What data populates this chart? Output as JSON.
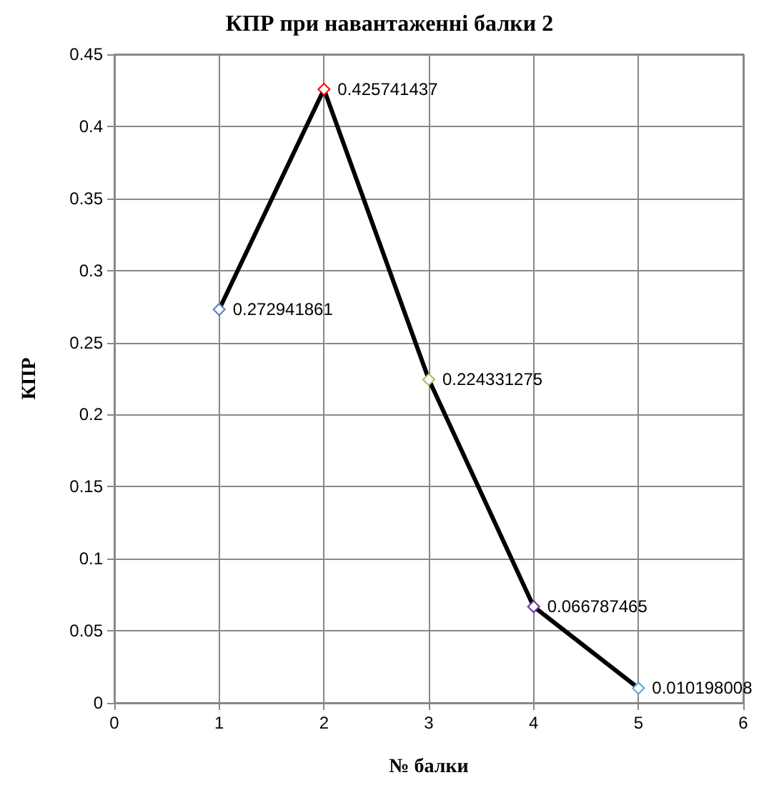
{
  "chart_data": {
    "type": "line",
    "title": "КПР при навантаженні балки 2",
    "xlabel": "№ балки",
    "ylabel": "КПР",
    "x": [
      1,
      2,
      3,
      4,
      5
    ],
    "series": [
      {
        "color": "#000000",
        "colors": [
          "#4f81bd",
          "#ff0000",
          "#9bbb59",
          "#7030a0",
          "#4bacc6"
        ],
        "values": [
          0.272941861,
          0.425741437,
          0.224331275,
          0.066787465,
          0.010198008
        ]
      }
    ],
    "xlim": [
      0,
      6
    ],
    "xticks": [
      0,
      1,
      2,
      3,
      4,
      5,
      6
    ],
    "ylim": [
      0,
      0.45
    ],
    "yticks": [
      0,
      0.05,
      0.1,
      0.15,
      0.2,
      0.25,
      0.3,
      0.35,
      0.4,
      0.45
    ],
    "grid": true,
    "marker": "diamond",
    "line_style": "solid",
    "data_labels": true
  }
}
